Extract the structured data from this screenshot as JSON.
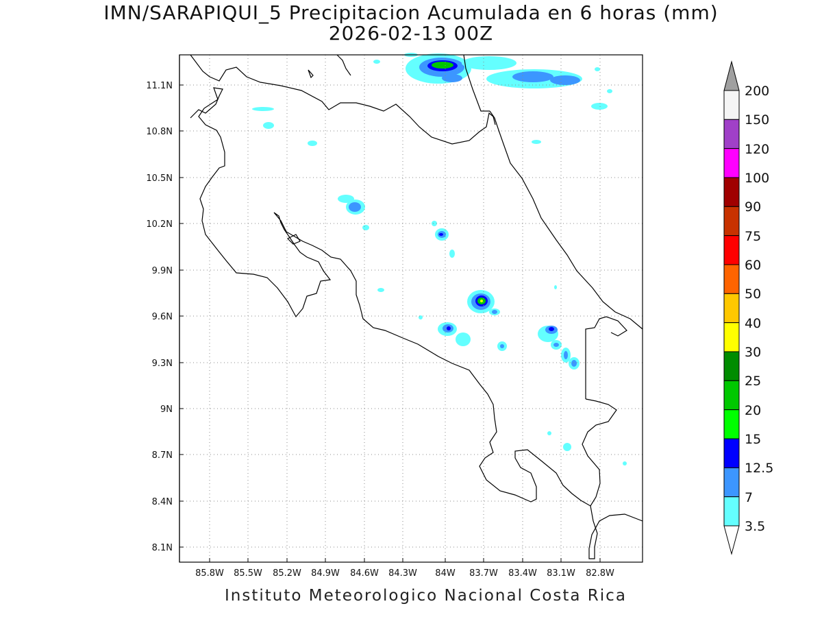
{
  "title": {
    "line1": "IMN/SARAPIQUI_5 Precipitacion Acumulada en 6 horas (mm)",
    "line2": "2026-02-13 00Z"
  },
  "footer": "Instituto Meteorologico Nacional Costa Rica",
  "map": {
    "lon_labels": [
      "85.8W",
      "85.5W",
      "85.2W",
      "84.9W",
      "84.6W",
      "84.3W",
      "84W",
      "83.7W",
      "83.4W",
      "83.1W",
      "82.8W"
    ],
    "lat_labels": [
      "11.1N",
      "10.8N",
      "10.5N",
      "10.2N",
      "9.9N",
      "9.6N",
      "9.3N",
      "9N",
      "8.7N",
      "8.4N",
      "8.1N"
    ]
  },
  "colorbar": {
    "labels": [
      "200",
      "150",
      "120",
      "100",
      "90",
      "75",
      "60",
      "50",
      "40",
      "30",
      "25",
      "20",
      "15",
      "12.5",
      "7",
      "3.5"
    ],
    "colors": [
      "#f5f5f5",
      "#a040c8",
      "#ff00ff",
      "#a00000",
      "#c83200",
      "#ff0000",
      "#ff6400",
      "#ffc800",
      "#ffff00",
      "#008c00",
      "#00c800",
      "#00ff00",
      "#0000ff",
      "#3c96ff",
      "#64ffff"
    ],
    "top_triangle_color": "#a0a0a0",
    "bottom_triangle_color": "#ffffff"
  }
}
